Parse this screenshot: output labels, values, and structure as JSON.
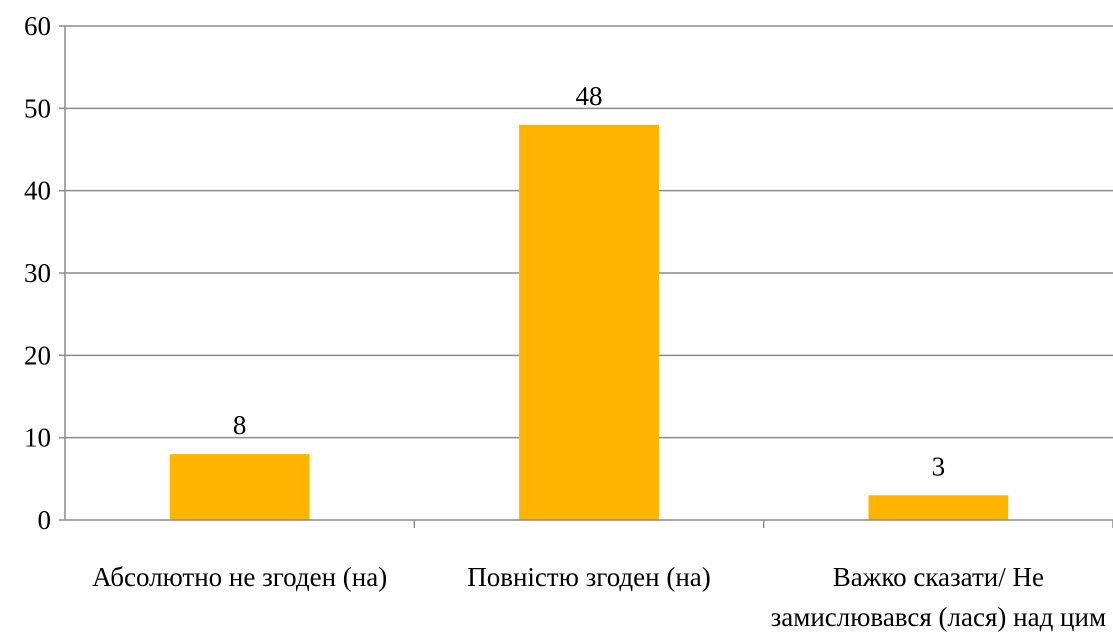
{
  "chart_data": {
    "type": "bar",
    "title": "",
    "xlabel": "",
    "ylabel": "",
    "categories": [
      [
        "Абсолютно не згоден (на)"
      ],
      [
        "Повністю згоден (на)"
      ],
      [
        "Важко сказати/ Не",
        "замислювався (лася) над цим"
      ]
    ],
    "values": [
      8,
      48,
      3
    ],
    "ylim": [
      0,
      60
    ],
    "yticks": [
      0,
      10,
      20,
      30,
      40,
      50,
      60
    ],
    "grid": true,
    "legend": "none",
    "bar_color": "#FFB400",
    "grid_color": "#8c8c8c"
  }
}
